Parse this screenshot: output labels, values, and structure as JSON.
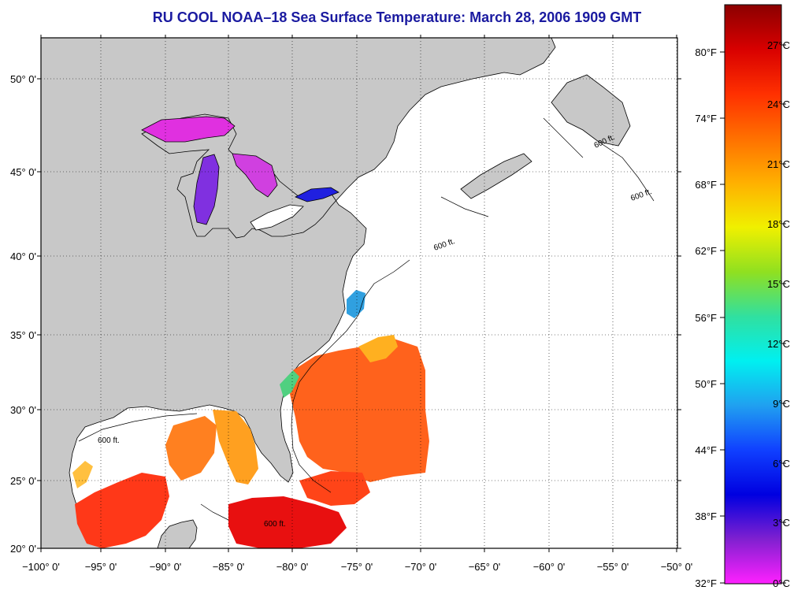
{
  "title": "RU COOL  NOAA–18  Sea Surface Temperature:  March 28, 2006 1909 GMT",
  "colors": {
    "title": "#1a1aa0",
    "land": "#c8c8c8",
    "ocean_no_data": "#ffffff"
  },
  "axes": {
    "lon_ticks": [
      "−100° 0'",
      "−95° 0'",
      "−90° 0'",
      "−85° 0'",
      "−80° 0'",
      "−75° 0'",
      "−70° 0'",
      "−65° 0'",
      "−60° 0'",
      "−55° 0'",
      "−50° 0'"
    ],
    "lat_ticks": [
      "50° 0'",
      "45° 0'",
      "40° 0'",
      "35° 0'",
      "30° 0'",
      "25° 0'",
      "20° 0'"
    ]
  },
  "contours": {
    "label": "600 ft."
  },
  "colorbar": {
    "f_labels": [
      "80°F",
      "74°F",
      "68°F",
      "62°F",
      "56°F",
      "50°F",
      "44°F",
      "38°F",
      "32°F"
    ],
    "c_labels": [
      "27°C",
      "24°C",
      "21°C",
      "18°C",
      "15°C",
      "12°C",
      "9°C",
      "6°C",
      "3°C",
      "0°C"
    ],
    "gradient_stops": [
      "#8b0000",
      "#d80000",
      "#ff3000",
      "#ff7000",
      "#ffb000",
      "#f0f000",
      "#90e020",
      "#30e0a0",
      "#00f0f0",
      "#20a0f0",
      "#1040ff",
      "#0000e0",
      "#8020d0",
      "#ff20ff"
    ]
  }
}
